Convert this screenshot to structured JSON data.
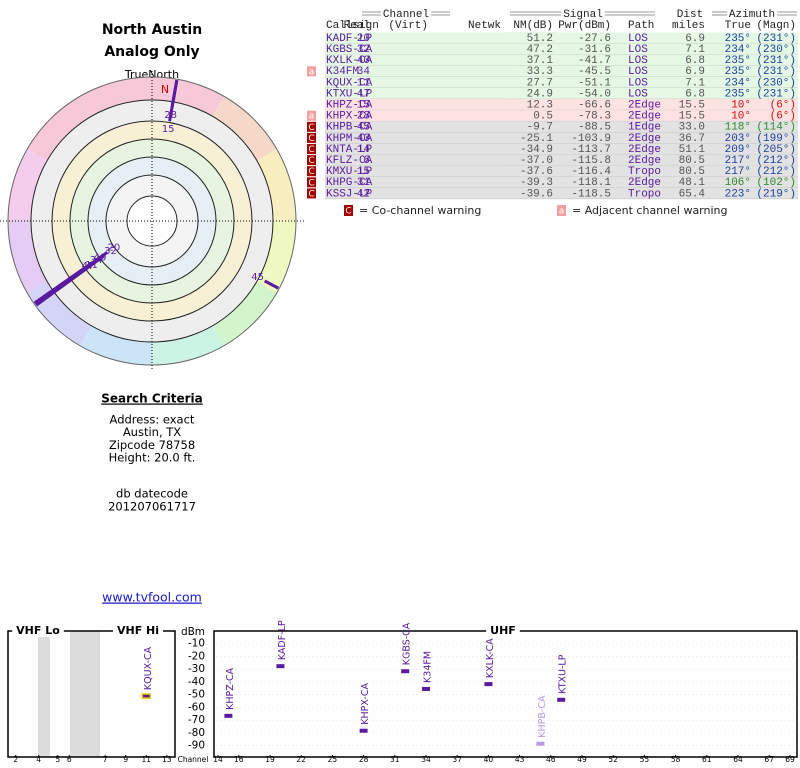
{
  "header": {
    "title": "North Austin",
    "subtitle": "Analog Only"
  },
  "polar": {
    "north_label": "TrueNorth",
    "n_mark": "N",
    "rays": [
      {
        "label": "28",
        "azimuth": 10,
        "nm": 0.5
      },
      {
        "label": "15",
        "azimuth": 10,
        "nm": 12.3
      },
      {
        "label": "20",
        "azimuth": 235,
        "nm": 51.2
      },
      {
        "label": "32",
        "azimuth": 234,
        "nm": 47.2
      },
      {
        "label": "34",
        "azimuth": 235,
        "nm": 33.3
      },
      {
        "label": "40",
        "azimuth": 235,
        "nm": 37.1
      },
      {
        "label": "11",
        "azimuth": 234,
        "nm": 27.7
      },
      {
        "label": "47",
        "azimuth": 235,
        "nm": 24.9
      },
      {
        "label": "45",
        "azimuth": 118,
        "nm": -9.7
      }
    ]
  },
  "table": {
    "groups": {
      "channel": "Channel",
      "signal": "Signal",
      "dist": "Dist",
      "azimuth": "Azimuth"
    },
    "columns": {
      "callsign": "Callsign",
      "real": "Real",
      "virt": "(Virt)",
      "netwk": "Netwk",
      "nm": "NM(dB)",
      "pwr": "Pwr(dBm)",
      "path": "Path",
      "dist": "miles",
      "true": "True",
      "magn": "(Magn)"
    },
    "rows": [
      {
        "callsign": "KADF-LP",
        "real": "20",
        "nm": "51.2",
        "pwr": "-27.6",
        "path": "LOS",
        "dist": "6.9",
        "true": "235°",
        "magn": "(231°)",
        "bg": "#e4f8e4",
        "az_color": "#1a3fa0"
      },
      {
        "callsign": "KGBS-CA",
        "real": "32",
        "nm": "47.2",
        "pwr": "-31.6",
        "path": "LOS",
        "dist": "7.1",
        "true": "234°",
        "magn": "(230°)",
        "bg": "#e4f8e4",
        "az_color": "#1a3fa0"
      },
      {
        "callsign": "KXLK-CA",
        "real": "40",
        "nm": "37.1",
        "pwr": "-41.7",
        "path": "LOS",
        "dist": "6.8",
        "true": "235°",
        "magn": "(231°)",
        "bg": "#e4f8e4",
        "az_color": "#1a3fa0"
      },
      {
        "callsign": "K34FM",
        "real": "34",
        "nm": "33.3",
        "pwr": "-45.5",
        "path": "LOS",
        "dist": "6.9",
        "true": "235°",
        "magn": "(231°)",
        "bg": "#e4f8e4",
        "az_color": "#1a3fa0",
        "warn": "a"
      },
      {
        "callsign": "KQUX-CA",
        "real": "11",
        "nm": "27.7",
        "pwr": "-51.1",
        "path": "LOS",
        "dist": "7.1",
        "true": "234°",
        "magn": "(230°)",
        "bg": "#e4f8e4",
        "az_color": "#1a3fa0"
      },
      {
        "callsign": "KTXU-LP",
        "real": "47",
        "nm": "24.9",
        "pwr": "-54.0",
        "path": "LOS",
        "dist": "6.8",
        "true": "235°",
        "magn": "(231°)",
        "bg": "#e4f8e4",
        "az_color": "#1a3fa0"
      },
      {
        "callsign": "KHPZ-CA",
        "real": "15",
        "nm": "12.3",
        "pwr": "-66.6",
        "path": "2Edge",
        "dist": "15.5",
        "true": "10°",
        "magn": "(6°)",
        "bg": "#fde2e2",
        "az_color": "#d01010"
      },
      {
        "callsign": "KHPX-CA",
        "real": "28",
        "nm": "0.5",
        "pwr": "-78.3",
        "path": "2Edge",
        "dist": "15.5",
        "true": "10°",
        "magn": "(6°)",
        "bg": "#fde2e2",
        "az_color": "#d01010",
        "warn": "a"
      },
      {
        "callsign": "KHPB-CA",
        "real": "45",
        "nm": "-9.7",
        "pwr": "-88.5",
        "path": "1Edge",
        "dist": "33.0",
        "true": "118°",
        "magn": "(114°)",
        "bg": "#e2e2e2",
        "az_color": "#2a8a2a",
        "warn": "C"
      },
      {
        "callsign": "KHPM-CA",
        "real": "40",
        "nm": "-25.1",
        "pwr": "-103.9",
        "path": "2Edge",
        "dist": "36.7",
        "true": "203°",
        "magn": "(199°)",
        "bg": "#e2e2e2",
        "az_color": "#1a3fa0",
        "warn": "C"
      },
      {
        "callsign": "KNTA-LP",
        "real": "14",
        "nm": "-34.9",
        "pwr": "-113.7",
        "path": "2Edge",
        "dist": "51.1",
        "true": "209°",
        "magn": "(205°)",
        "bg": "#e2e2e2",
        "az_color": "#1a3fa0",
        "warn": "C"
      },
      {
        "callsign": "KFLZ-CA",
        "real": "6",
        "nm": "-37.0",
        "pwr": "-115.8",
        "path": "2Edge",
        "dist": "80.5",
        "true": "217°",
        "magn": "(212°)",
        "bg": "#e2e2e2",
        "az_color": "#1a3fa0",
        "warn": "C"
      },
      {
        "callsign": "KMXU-LP",
        "real": "15",
        "nm": "-37.6",
        "pwr": "-116.4",
        "path": "Tropo",
        "dist": "80.5",
        "true": "217°",
        "magn": "(212°)",
        "bg": "#e2e2e2",
        "az_color": "#1a3fa0",
        "warn": "C"
      },
      {
        "callsign": "KHPG-CA",
        "real": "31",
        "nm": "-39.3",
        "pwr": "-118.1",
        "path": "2Edge",
        "dist": "48.1",
        "true": "106°",
        "magn": "(102°)",
        "bg": "#e2e2e2",
        "az_color": "#2a8a2a",
        "warn": "C"
      },
      {
        "callsign": "KSSJ-LP",
        "real": "42",
        "nm": "-39.6",
        "pwr": "-118.5",
        "path": "Tropo",
        "dist": "65.4",
        "true": "223°",
        "magn": "(219°)",
        "bg": "#e2e2e2",
        "az_color": "#1a3fa0",
        "warn": "C"
      }
    ]
  },
  "legend": {
    "co_icon": "C",
    "co_text": "= Co-channel warning",
    "adj_icon": "a",
    "adj_text": "= Adjacent channel warning"
  },
  "search": {
    "title": "Search Criteria",
    "lines": [
      "Address: exact",
      "Austin, TX",
      "Zipcode 78758",
      "Height: 20.0 ft."
    ],
    "datecode_label": "db datecode",
    "datecode": "201207061717"
  },
  "link": "www.tvfool.com",
  "spectrum": {
    "vhf_lo": "VHF Lo",
    "vhf_hi": "VHF Hi",
    "uhf": "UHF",
    "y_label": "dBm",
    "x_label": "Channel",
    "ylim": [
      -95,
      0
    ],
    "yticks": [
      -10,
      -20,
      -30,
      -40,
      -50,
      -60,
      -70,
      -80,
      -90
    ],
    "vhf_xticks": [
      2,
      4,
      5,
      6,
      7,
      9,
      11,
      13
    ],
    "uhf_xticks": [
      14,
      16,
      19,
      22,
      25,
      28,
      31,
      34,
      37,
      40,
      43,
      46,
      49,
      52,
      55,
      58,
      61,
      64,
      67,
      69
    ],
    "markers": [
      {
        "callsign": "KQUX-CA",
        "channel": 11,
        "dbm": -51.1,
        "color": "#5a1aa0",
        "outline": "#f0c000"
      },
      {
        "callsign": "KHPZ-CA",
        "channel": 15,
        "dbm": -66.6,
        "color": "#5a1aa0"
      },
      {
        "callsign": "KADF-LP",
        "channel": 20,
        "dbm": -27.6,
        "color": "#5a1aa0"
      },
      {
        "callsign": "KHPX-CA",
        "channel": 28,
        "dbm": -78.3,
        "color": "#5a1aa0"
      },
      {
        "callsign": "KGBS-CA",
        "channel": 32,
        "dbm": -31.6,
        "color": "#5a1aa0"
      },
      {
        "callsign": "K34FM",
        "channel": 34,
        "dbm": -45.5,
        "color": "#5a1aa0"
      },
      {
        "callsign": "KXLK-CA",
        "channel": 40,
        "dbm": -41.7,
        "color": "#5a1aa0"
      },
      {
        "callsign": "KHPB-CA",
        "channel": 45,
        "dbm": -88.5,
        "color": "#b89ae6"
      },
      {
        "callsign": "KTXU-LP",
        "channel": 47,
        "dbm": -54.0,
        "color": "#5a1aa0"
      }
    ]
  }
}
